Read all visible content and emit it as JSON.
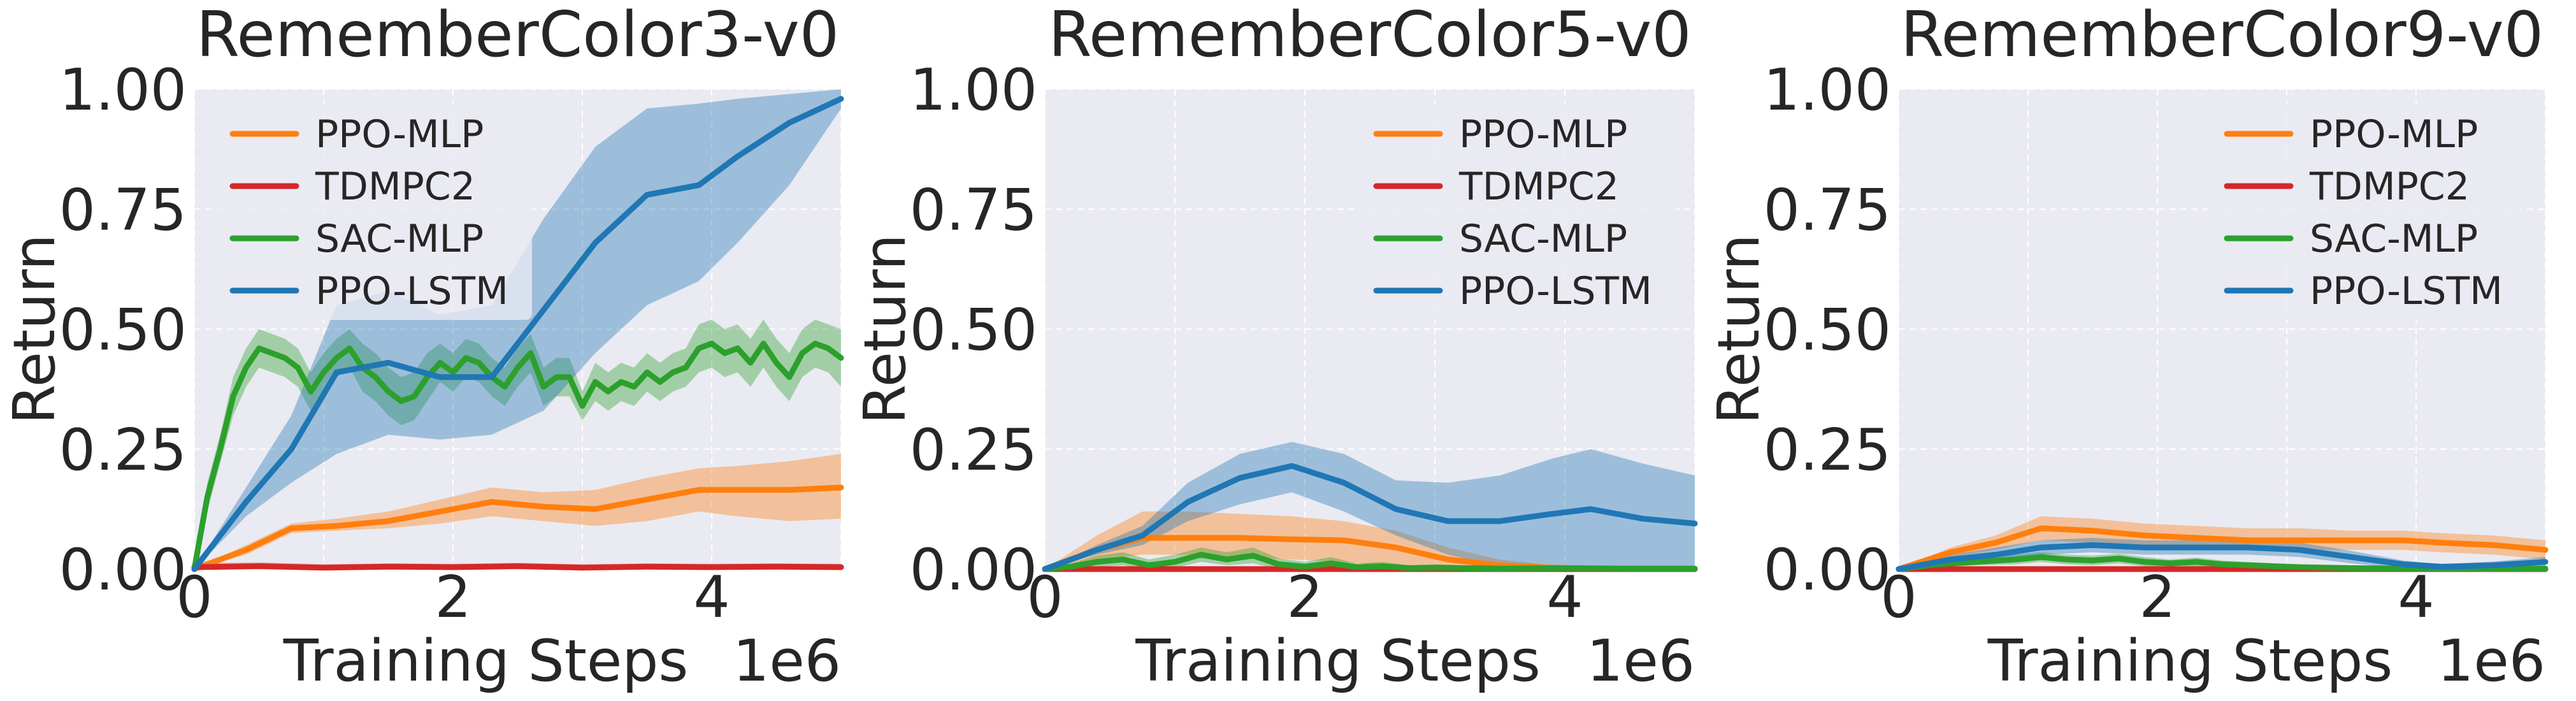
{
  "chart_data": [
    {
      "type": "line",
      "title": "RememberColor3-v0",
      "xlabel": "Training Steps",
      "x_offset_label": "1e6",
      "ylabel": "Return",
      "xlim": [
        0,
        5000000
      ],
      "ylim": [
        0,
        1
      ],
      "xticks": [
        0,
        2000000,
        4000000
      ],
      "xtick_labels": [
        "0",
        "2",
        "4"
      ],
      "yticks": [
        0,
        0.25,
        0.5,
        0.75,
        1.0
      ],
      "ytick_labels": [
        "0.00",
        "0.25",
        "0.50",
        "0.75",
        "1.00"
      ],
      "grid": true,
      "legend_position": "top-left",
      "series": [
        {
          "name": "PPO-MLP",
          "color": "#ff7f0e",
          "x": [
            0,
            400000,
            750000,
            1100000,
            1500000,
            1900000,
            2300000,
            2700000,
            3100000,
            3500000,
            3900000,
            4200000,
            4600000,
            5000000
          ],
          "y": [
            0,
            0.04,
            0.085,
            0.09,
            0.1,
            0.12,
            0.14,
            0.13,
            0.125,
            0.145,
            0.165,
            0.165,
            0.165,
            0.17
          ],
          "lo": [
            0,
            0.03,
            0.075,
            0.08,
            0.085,
            0.095,
            0.11,
            0.1,
            0.09,
            0.1,
            0.12,
            0.11,
            0.1,
            0.105
          ],
          "hi": [
            0,
            0.05,
            0.095,
            0.105,
            0.12,
            0.145,
            0.17,
            0.16,
            0.165,
            0.19,
            0.21,
            0.215,
            0.225,
            0.24
          ]
        },
        {
          "name": "TDMPC2",
          "color": "#d62728",
          "x": [
            0,
            500000,
            1000000,
            1500000,
            2000000,
            2500000,
            3000000,
            3500000,
            4000000,
            4500000,
            5000000
          ],
          "y": [
            0.004,
            0.006,
            0.003,
            0.005,
            0.004,
            0.006,
            0.003,
            0.005,
            0.004,
            0.005,
            0.004
          ],
          "lo": [
            0,
            0,
            0,
            0,
            0,
            0,
            0,
            0,
            0,
            0,
            0
          ],
          "hi": [
            0.012,
            0.014,
            0.01,
            0.012,
            0.011,
            0.013,
            0.01,
            0.012,
            0.011,
            0.012,
            0.011
          ]
        },
        {
          "name": "SAC-MLP",
          "color": "#2ca02c",
          "x": [
            0,
            100000,
            200000,
            300000,
            400000,
            500000,
            600000,
            700000,
            800000,
            900000,
            1000000,
            1100000,
            1200000,
            1300000,
            1400000,
            1500000,
            1600000,
            1700000,
            1800000,
            1900000,
            2000000,
            2100000,
            2200000,
            2300000,
            2400000,
            2500000,
            2600000,
            2700000,
            2800000,
            2900000,
            3000000,
            3100000,
            3200000,
            3300000,
            3400000,
            3500000,
            3600000,
            3700000,
            3800000,
            3900000,
            4000000,
            4100000,
            4200000,
            4300000,
            4400000,
            4500000,
            4600000,
            4700000,
            4800000,
            4900000,
            5000000
          ],
          "y": [
            0,
            0.15,
            0.25,
            0.36,
            0.42,
            0.46,
            0.45,
            0.44,
            0.42,
            0.37,
            0.41,
            0.44,
            0.46,
            0.42,
            0.4,
            0.37,
            0.35,
            0.36,
            0.4,
            0.43,
            0.41,
            0.44,
            0.43,
            0.4,
            0.38,
            0.42,
            0.45,
            0.38,
            0.4,
            0.4,
            0.34,
            0.39,
            0.37,
            0.39,
            0.38,
            0.41,
            0.39,
            0.41,
            0.42,
            0.46,
            0.47,
            0.45,
            0.46,
            0.43,
            0.47,
            0.43,
            0.4,
            0.45,
            0.47,
            0.46,
            0.44
          ],
          "lo": [
            0,
            0.12,
            0.22,
            0.32,
            0.38,
            0.42,
            0.41,
            0.4,
            0.38,
            0.33,
            0.37,
            0.4,
            0.42,
            0.37,
            0.35,
            0.32,
            0.3,
            0.31,
            0.35,
            0.39,
            0.37,
            0.4,
            0.39,
            0.36,
            0.34,
            0.38,
            0.41,
            0.34,
            0.36,
            0.36,
            0.31,
            0.35,
            0.33,
            0.35,
            0.34,
            0.37,
            0.35,
            0.37,
            0.38,
            0.41,
            0.42,
            0.4,
            0.41,
            0.38,
            0.42,
            0.38,
            0.35,
            0.4,
            0.42,
            0.41,
            0.38
          ],
          "hi": [
            0,
            0.18,
            0.28,
            0.4,
            0.46,
            0.5,
            0.49,
            0.48,
            0.46,
            0.41,
            0.45,
            0.48,
            0.5,
            0.47,
            0.45,
            0.42,
            0.4,
            0.41,
            0.45,
            0.47,
            0.45,
            0.48,
            0.47,
            0.44,
            0.42,
            0.46,
            0.49,
            0.42,
            0.44,
            0.44,
            0.37,
            0.43,
            0.41,
            0.43,
            0.42,
            0.45,
            0.43,
            0.45,
            0.46,
            0.51,
            0.52,
            0.5,
            0.51,
            0.48,
            0.52,
            0.48,
            0.45,
            0.5,
            0.52,
            0.51,
            0.5
          ]
        },
        {
          "name": "PPO-LSTM",
          "color": "#1f77b4",
          "x": [
            0,
            400000,
            750000,
            1100000,
            1500000,
            1900000,
            2300000,
            2700000,
            3100000,
            3500000,
            3900000,
            4200000,
            4600000,
            5000000
          ],
          "y": [
            0,
            0.14,
            0.25,
            0.41,
            0.43,
            0.4,
            0.4,
            0.54,
            0.68,
            0.78,
            0.8,
            0.86,
            0.93,
            0.98
          ],
          "lo": [
            0,
            0.11,
            0.18,
            0.24,
            0.28,
            0.27,
            0.28,
            0.33,
            0.45,
            0.55,
            0.6,
            0.68,
            0.8,
            0.96
          ],
          "hi": [
            0,
            0.17,
            0.32,
            0.55,
            0.58,
            0.53,
            0.55,
            0.73,
            0.88,
            0.96,
            0.97,
            0.98,
            0.99,
            1.0
          ]
        }
      ]
    },
    {
      "type": "line",
      "title": "RememberColor5-v0",
      "xlabel": "Training Steps",
      "x_offset_label": "1e6",
      "ylabel": "Return",
      "xlim": [
        0,
        5000000
      ],
      "ylim": [
        0,
        1
      ],
      "xticks": [
        0,
        2000000,
        4000000
      ],
      "xtick_labels": [
        "0",
        "2",
        "4"
      ],
      "yticks": [
        0,
        0.25,
        0.5,
        0.75,
        1.0
      ],
      "ytick_labels": [
        "0.00",
        "0.25",
        "0.50",
        "0.75",
        "1.00"
      ],
      "grid": true,
      "legend_position": "top-right",
      "series": [
        {
          "name": "PPO-MLP",
          "color": "#ff7f0e",
          "x": [
            0,
            400000,
            750000,
            1100000,
            1500000,
            1900000,
            2300000,
            2700000,
            3100000,
            3500000,
            3900000,
            4200000,
            4600000,
            5000000
          ],
          "y": [
            0,
            0.04,
            0.065,
            0.065,
            0.065,
            0.062,
            0.06,
            0.045,
            0.02,
            0.008,
            0.003,
            0.001,
            0,
            0
          ],
          "lo": [
            0,
            0.02,
            0.03,
            0.03,
            0.025,
            0.02,
            0.015,
            0.005,
            0,
            0,
            0,
            0,
            0,
            0
          ],
          "hi": [
            0,
            0.07,
            0.12,
            0.12,
            0.115,
            0.11,
            0.1,
            0.08,
            0.045,
            0.02,
            0.008,
            0.003,
            0.001,
            0.001
          ]
        },
        {
          "name": "TDMPC2",
          "color": "#d62728",
          "x": [
            0,
            500000,
            1000000,
            1500000,
            2000000,
            2500000,
            3000000,
            3500000,
            4000000,
            4500000,
            5000000
          ],
          "y": [
            0,
            0,
            0,
            0,
            0,
            0,
            0,
            0,
            0,
            0,
            0
          ],
          "lo": [
            0,
            0,
            0,
            0,
            0,
            0,
            0,
            0,
            0,
            0,
            0
          ],
          "hi": [
            0,
            0,
            0,
            0,
            0,
            0,
            0,
            0,
            0,
            0,
            0
          ]
        },
        {
          "name": "SAC-MLP",
          "color": "#2ca02c",
          "x": [
            0,
            200000,
            400000,
            600000,
            800000,
            1000000,
            1200000,
            1400000,
            1600000,
            1800000,
            2000000,
            2200000,
            2400000,
            2600000,
            2800000,
            3000000,
            3500000,
            4000000,
            4500000,
            5000000
          ],
          "y": [
            0,
            0.005,
            0.015,
            0.02,
            0.008,
            0.015,
            0.03,
            0.02,
            0.028,
            0.01,
            0.005,
            0.012,
            0.004,
            0.006,
            0.002,
            0.003,
            0.001,
            0.002,
            0.001,
            0.001
          ],
          "lo": [
            0,
            0,
            0.005,
            0.008,
            0,
            0.003,
            0.015,
            0.008,
            0.012,
            0,
            0,
            0.002,
            0,
            0,
            0,
            0,
            0,
            0,
            0,
            0
          ],
          "hi": [
            0,
            0.012,
            0.028,
            0.035,
            0.02,
            0.03,
            0.045,
            0.035,
            0.045,
            0.022,
            0.015,
            0.025,
            0.012,
            0.015,
            0.008,
            0.01,
            0.005,
            0.006,
            0.004,
            0.004
          ]
        },
        {
          "name": "PPO-LSTM",
          "color": "#1f77b4",
          "x": [
            0,
            400000,
            750000,
            1100000,
            1500000,
            1900000,
            2300000,
            2700000,
            3100000,
            3500000,
            3900000,
            4200000,
            4600000,
            5000000
          ],
          "y": [
            0,
            0.04,
            0.07,
            0.14,
            0.19,
            0.215,
            0.18,
            0.125,
            0.1,
            0.1,
            0.115,
            0.125,
            0.105,
            0.095
          ],
          "lo": [
            0,
            0.03,
            0.05,
            0.1,
            0.135,
            0.16,
            0.12,
            0.07,
            0.03,
            0.005,
            0,
            0,
            0,
            0
          ],
          "hi": [
            0,
            0.05,
            0.09,
            0.18,
            0.24,
            0.265,
            0.24,
            0.185,
            0.18,
            0.195,
            0.23,
            0.25,
            0.22,
            0.195
          ]
        }
      ]
    },
    {
      "type": "line",
      "title": "RememberColor9-v0",
      "xlabel": "Training Steps",
      "x_offset_label": "1e6",
      "ylabel": "Return",
      "xlim": [
        0,
        5000000
      ],
      "ylim": [
        0,
        1
      ],
      "xticks": [
        0,
        2000000,
        4000000
      ],
      "xtick_labels": [
        "0",
        "2",
        "4"
      ],
      "yticks": [
        0,
        0.25,
        0.5,
        0.75,
        1.0
      ],
      "ytick_labels": [
        "0.00",
        "0.25",
        "0.50",
        "0.75",
        "1.00"
      ],
      "grid": true,
      "legend_position": "top-right",
      "series": [
        {
          "name": "PPO-MLP",
          "color": "#ff7f0e",
          "x": [
            0,
            400000,
            750000,
            1100000,
            1500000,
            1900000,
            2300000,
            2700000,
            3100000,
            3500000,
            3900000,
            4200000,
            4600000,
            5000000
          ],
          "y": [
            0,
            0.035,
            0.055,
            0.085,
            0.08,
            0.07,
            0.065,
            0.06,
            0.06,
            0.06,
            0.06,
            0.055,
            0.05,
            0.04
          ],
          "lo": [
            0,
            0.025,
            0.04,
            0.06,
            0.055,
            0.05,
            0.045,
            0.04,
            0.04,
            0.04,
            0.04,
            0.035,
            0.03,
            0.02
          ],
          "hi": [
            0,
            0.045,
            0.07,
            0.11,
            0.105,
            0.095,
            0.09,
            0.085,
            0.085,
            0.08,
            0.08,
            0.075,
            0.07,
            0.06
          ]
        },
        {
          "name": "TDMPC2",
          "color": "#d62728",
          "x": [
            0,
            500000,
            1000000,
            1500000,
            2000000,
            2500000,
            3000000,
            3500000,
            4000000,
            4500000,
            5000000
          ],
          "y": [
            0,
            0,
            0,
            0,
            0,
            0,
            0,
            0,
            0,
            0,
            0
          ],
          "lo": [
            0,
            0,
            0,
            0,
            0,
            0,
            0,
            0,
            0,
            0,
            0
          ],
          "hi": [
            0,
            0,
            0,
            0,
            0,
            0,
            0,
            0,
            0,
            0,
            0
          ]
        },
        {
          "name": "SAC-MLP",
          "color": "#2ca02c",
          "x": [
            0,
            300000,
            600000,
            900000,
            1100000,
            1300000,
            1500000,
            1700000,
            1900000,
            2100000,
            2300000,
            2500000,
            2700000,
            2900000,
            3100000,
            3500000,
            4000000,
            4500000,
            5000000
          ],
          "y": [
            0,
            0.01,
            0.015,
            0.02,
            0.025,
            0.02,
            0.018,
            0.022,
            0.015,
            0.012,
            0.015,
            0.01,
            0.008,
            0.006,
            0.004,
            0.002,
            0.001,
            0.001,
            0.001
          ],
          "lo": [
            0,
            0.004,
            0.008,
            0.01,
            0.015,
            0.01,
            0.008,
            0.012,
            0.006,
            0.004,
            0.006,
            0.002,
            0,
            0,
            0,
            0,
            0,
            0,
            0
          ],
          "hi": [
            0,
            0.016,
            0.024,
            0.03,
            0.035,
            0.03,
            0.028,
            0.032,
            0.025,
            0.02,
            0.024,
            0.018,
            0.015,
            0.012,
            0.008,
            0.005,
            0.003,
            0.003,
            0.003
          ]
        },
        {
          "name": "PPO-LSTM",
          "color": "#1f77b4",
          "x": [
            0,
            400000,
            750000,
            1100000,
            1500000,
            1900000,
            2300000,
            2700000,
            3100000,
            3500000,
            3900000,
            4200000,
            4600000,
            5000000
          ],
          "y": [
            0,
            0.02,
            0.03,
            0.045,
            0.05,
            0.045,
            0.045,
            0.045,
            0.04,
            0.025,
            0.01,
            0.005,
            0.008,
            0.015
          ],
          "lo": [
            0,
            0.01,
            0.015,
            0.03,
            0.035,
            0.03,
            0.03,
            0.03,
            0.025,
            0.012,
            0.002,
            0,
            0,
            0.005
          ],
          "hi": [
            0,
            0.03,
            0.045,
            0.06,
            0.065,
            0.06,
            0.06,
            0.06,
            0.055,
            0.038,
            0.018,
            0.01,
            0.016,
            0.025
          ]
        }
      ]
    }
  ]
}
